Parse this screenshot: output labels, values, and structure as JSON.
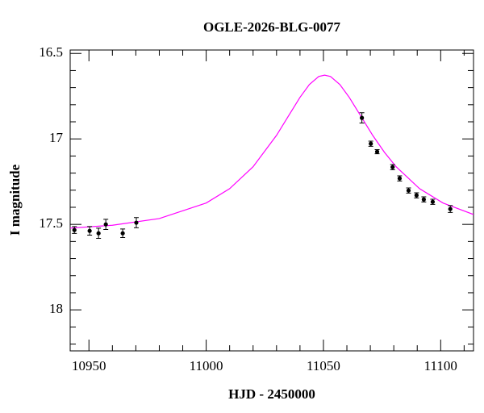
{
  "chart_data": {
    "type": "scatter",
    "title": "OGLE-2026-BLG-0077",
    "xlabel": "HJD - 2450000",
    "ylabel": "I magnitude",
    "xlim": [
      10942,
      11114
    ],
    "ylim": [
      18.24,
      16.48
    ],
    "xticks": [
      10950,
      11000,
      11050,
      11100
    ],
    "yticks": [
      16.5,
      17,
      17.5,
      18
    ],
    "xminorticks": [
      10960,
      10970,
      10980,
      10990,
      11010,
      11020,
      11030,
      11040,
      11060,
      11070,
      11080,
      11090,
      11110
    ],
    "yminorticks": [
      16.6,
      16.7,
      16.8,
      16.9,
      17.1,
      17.2,
      17.3,
      17.4,
      17.6,
      17.7,
      17.8,
      17.9,
      18.1,
      18.2
    ],
    "series": [
      {
        "type": "line",
        "color": "#ff00ff",
        "x": [
          10942,
          10960,
          10980,
          11000,
          11010,
          11020,
          11030,
          11035,
          11040,
          11044,
          11048,
          11050.5,
          11053,
          11057,
          11061,
          11066,
          11071,
          11076,
          11081,
          11091,
          11101,
          11114
        ],
        "values": [
          17.522,
          17.505,
          17.466,
          17.375,
          17.291,
          17.163,
          16.979,
          16.868,
          16.757,
          16.682,
          16.635,
          16.627,
          16.635,
          16.682,
          16.757,
          16.868,
          16.979,
          17.078,
          17.163,
          17.291,
          17.375,
          17.442
        ]
      },
      {
        "type": "scatter",
        "color": "#000000",
        "x": [
          10943.8,
          10950.3,
          10954.1,
          10957.2,
          10964.4,
          10970.2,
          11066.4,
          11070.2,
          11072.9,
          11079.5,
          11082.5,
          11086.3,
          11089.7,
          11092.8,
          11096.6,
          11104.1
        ],
        "values": [
          17.533,
          17.538,
          17.552,
          17.5,
          17.552,
          17.49,
          16.877,
          17.028,
          17.075,
          17.165,
          17.231,
          17.302,
          17.33,
          17.354,
          17.368,
          17.41
        ],
        "errors": [
          0.02,
          0.025,
          0.03,
          0.03,
          0.025,
          0.03,
          0.03,
          0.015,
          0.012,
          0.015,
          0.015,
          0.015,
          0.015,
          0.015,
          0.015,
          0.02
        ]
      }
    ]
  }
}
